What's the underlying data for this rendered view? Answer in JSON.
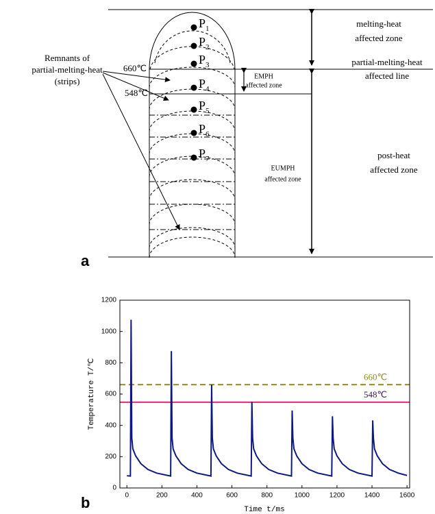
{
  "diagram": {
    "panel_label": "a",
    "zones": {
      "melting": [
        "melting-heat",
        "affected zone"
      ],
      "partial_line": [
        "partial-melting-heat",
        "affected line"
      ],
      "post_heat": [
        "post-heat",
        "affected zone"
      ],
      "emph": [
        "EMPH",
        "affected zone"
      ],
      "eumph": [
        "EUMPH",
        "affected zone"
      ]
    },
    "remnants": [
      "Remnants of",
      "partial-melting-heat",
      "(strips)"
    ],
    "temp_labels": [
      "660℃",
      "548℃"
    ],
    "points": [
      {
        "label": "P",
        "sub": "1"
      },
      {
        "label": "P",
        "sub": "2"
      },
      {
        "label": "P",
        "sub": "3"
      },
      {
        "label": "P",
        "sub": "4"
      },
      {
        "label": "P",
        "sub": "5"
      },
      {
        "label": "P",
        "sub": "6"
      },
      {
        "label": "P",
        "sub": "7"
      }
    ]
  },
  "chart_data": {
    "type": "line",
    "panel_label": "b",
    "x_label": "Time t/ms",
    "y_label": "Temperature T/℃",
    "xlim": [
      -40,
      1615
    ],
    "ylim": [
      0,
      1200
    ],
    "xticks": [
      0,
      200,
      400,
      600,
      800,
      1000,
      1200,
      1400,
      1600
    ],
    "yticks": [
      0,
      200,
      400,
      600,
      800,
      1000,
      1200
    ],
    "x": [
      0,
      20,
      24,
      28,
      34,
      50,
      80,
      120,
      170,
      250,
      254,
      258,
      264,
      280,
      310,
      350,
      400,
      480,
      484,
      488,
      494,
      510,
      540,
      580,
      630,
      710,
      714,
      718,
      724,
      740,
      770,
      810,
      860,
      940,
      944,
      948,
      954,
      970,
      1000,
      1040,
      1090,
      1170,
      1174,
      1178,
      1184,
      1200,
      1230,
      1270,
      1320,
      1400,
      1404,
      1408,
      1414,
      1430,
      1460,
      1500,
      1550,
      1600
    ],
    "series": [
      {
        "color": "#0c1a80",
        "values": [
          78,
          76,
          1075,
          320,
          250,
          205,
          155,
          118,
          95,
          76,
          875,
          320,
          250,
          205,
          155,
          118,
          95,
          76,
          660,
          320,
          250,
          205,
          155,
          118,
          95,
          76,
          550,
          320,
          250,
          205,
          155,
          118,
          95,
          76,
          495,
          320,
          250,
          205,
          155,
          118,
          95,
          76,
          458,
          320,
          250,
          205,
          155,
          118,
          95,
          76,
          432,
          320,
          250,
          205,
          155,
          118,
          95,
          80
        ]
      }
    ],
    "reference_lines": [
      {
        "label": "660℃",
        "value": 660,
        "color": "#8c8a1e",
        "label_color": "#8c8a1e",
        "style": "dashed"
      },
      {
        "label": "548℃",
        "value": 548,
        "color": "#e6287f",
        "label_color": "#3a1a4a",
        "style": "solid"
      }
    ]
  }
}
